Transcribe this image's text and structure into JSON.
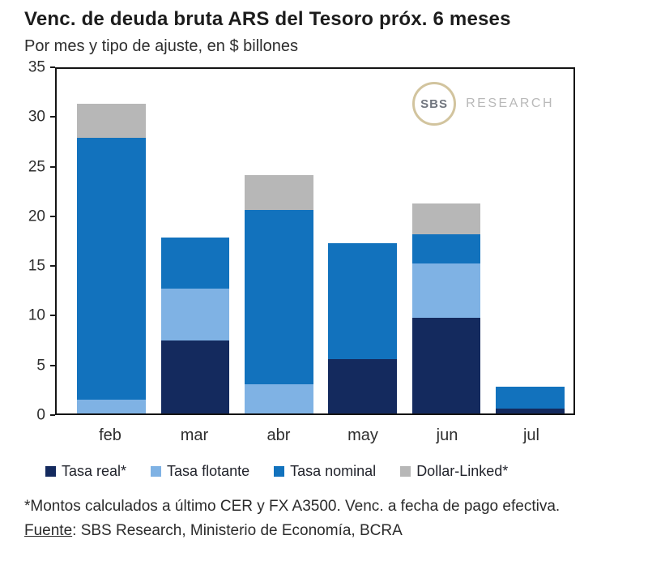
{
  "chart_data": {
    "type": "bar",
    "stacked": true,
    "title": "Venc. de deuda bruta ARS del Tesoro próx. 6 meses",
    "subtitle": "Por mes y tipo de ajuste, en $ billones",
    "xlabel": "",
    "ylabel": "",
    "ylim": [
      0,
      35
    ],
    "yticks": [
      0,
      5,
      10,
      15,
      20,
      25,
      30,
      35
    ],
    "grid": false,
    "legend_position": "bottom",
    "categories": [
      "feb",
      "mar",
      "abr",
      "may",
      "jun",
      "jul"
    ],
    "series": [
      {
        "name": "Tasa real*",
        "key": "tasa-real",
        "color": "#142a5e",
        "values": [
          0,
          7.4,
          0,
          5.5,
          9.7,
          0.5
        ]
      },
      {
        "name": "Tasa flotante",
        "key": "tasa-flotante",
        "color": "#7fb2e4",
        "values": [
          1.4,
          5.3,
          3.0,
          0,
          5.5,
          0
        ]
      },
      {
        "name": "Tasa nominal",
        "key": "tasa-nominal",
        "color": "#1272bd",
        "values": [
          26.6,
          5.2,
          17.7,
          11.8,
          3.0,
          2.2
        ]
      },
      {
        "name": "Dollar-Linked*",
        "key": "dollar-linked",
        "color": "#b7b7b7",
        "values": [
          3.5,
          0,
          3.5,
          0,
          3.1,
          0
        ]
      }
    ]
  },
  "logo": {
    "sbs": "SBS",
    "research": "RESEARCH"
  },
  "footer": {
    "footnote": "*Montos calculados a último CER y FX A3500. Venc. a fecha de pago efectiva.",
    "source_label": "Fuente",
    "source_rest": ": SBS Research, Ministerio de Economía, BCRA"
  }
}
